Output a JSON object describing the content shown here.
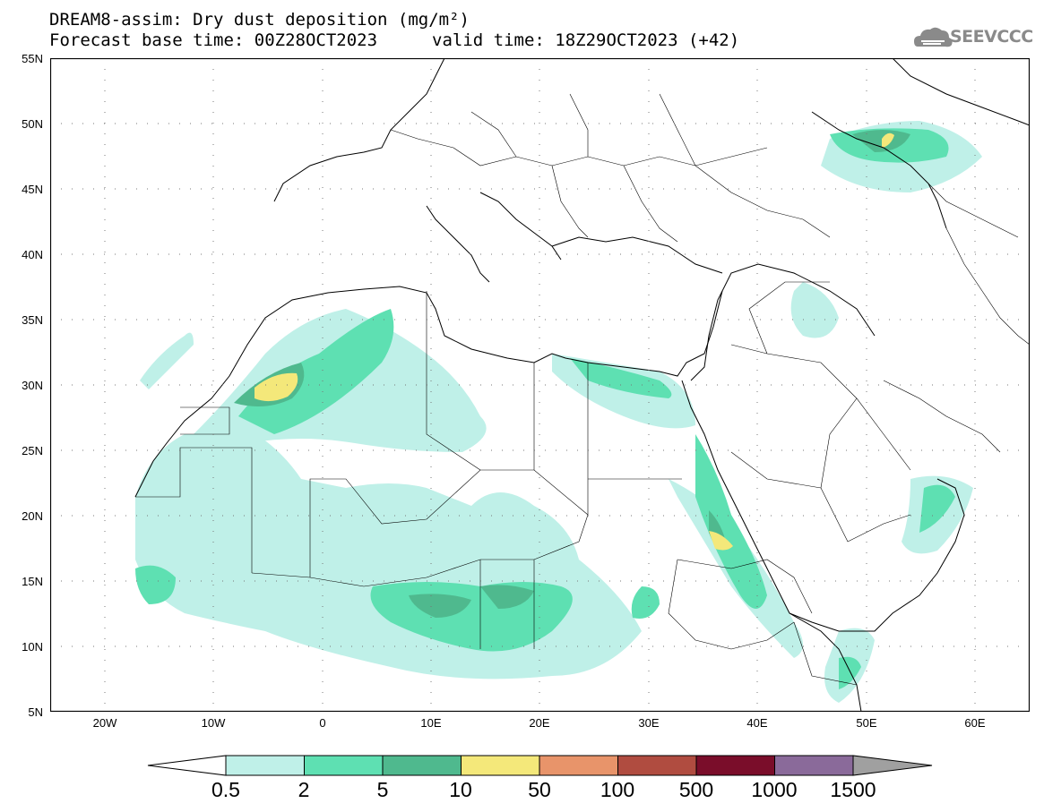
{
  "header": {
    "line1": "DREAM8-assim: Dry dust deposition (mg/m²)",
    "line2": "Forecast base time: 00Z28OCT2023",
    "line3": "valid time: 18Z29OCT2023 (+42)"
  },
  "logo": {
    "text": "SEEVCCC",
    "icon": "cloud-logo-icon"
  },
  "map": {
    "lon_range": [
      -25,
      65
    ],
    "lat_range": [
      5,
      55
    ],
    "lat_ticks": [
      "55N",
      "50N",
      "45N",
      "40N",
      "35N",
      "30N",
      "25N",
      "20N",
      "15N",
      "10N",
      "5N"
    ],
    "lon_ticks": [
      "20W",
      "10W",
      "0",
      "10E",
      "20E",
      "30E",
      "40E",
      "50E",
      "60E"
    ],
    "grid": "dotted"
  },
  "colorbar": {
    "labels": [
      "0.5",
      "2",
      "5",
      "10",
      "50",
      "100",
      "500",
      "1000",
      "1500"
    ],
    "colors": [
      "#bff0e8",
      "#5ee0b2",
      "#4fb98e",
      "#f4e87a",
      "#e8946a",
      "#b04c40",
      "#7a0d2a",
      "#8a6a9a",
      "#a0a0a0"
    ],
    "under_color": "#ffffff",
    "over_color": "#a0a0a0"
  }
}
